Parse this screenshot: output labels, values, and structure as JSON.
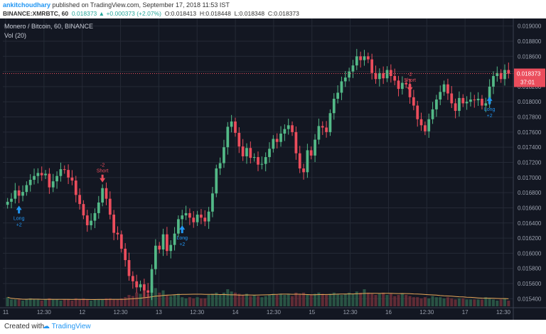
{
  "header": {
    "author": "ankitchoudhary",
    "published_text": "published on TradingView.com, September 17, 2018 11:53 IST",
    "symbol": "BINANCE:XMRBTC, 60",
    "last": "0.018373",
    "change": "+0.000373 (+2.07%)",
    "ohlc_open": "O:0.018413",
    "ohlc_high": "H:0.018448",
    "ohlc_low": "L:0.018348",
    "ohlc_close": "C:0.018373"
  },
  "legend": {
    "title": "Monero / Bitcoin, 60, BINANCE",
    "volume": "Vol (20)"
  },
  "price_tag": {
    "value": "0.018373",
    "countdown": "37:01"
  },
  "footer": {
    "created_with": "Created with",
    "brand": "TradingView"
  },
  "colors": {
    "up": "#53b987",
    "down": "#eb4d5c",
    "background": "#131722",
    "grid": "#252a36",
    "price_line": "#eb4d5c",
    "volume_ma": "#e8a85a",
    "signal": "#2196f3"
  },
  "chart_data": {
    "type": "candlestick",
    "ylim": [
      0.0153,
      0.0191
    ],
    "y_ticks": [
      "0.019000",
      "0.018800",
      "0.018600",
      "0.018400",
      "0.018200",
      "0.018000",
      "0.017800",
      "0.017600",
      "0.017400",
      "0.017200",
      "0.017000",
      "0.016800",
      "0.016600",
      "0.016400",
      "0.016200",
      "0.016000",
      "0.015800",
      "0.015600",
      "0.015400"
    ],
    "x_ticks": [
      "11",
      "12:30",
      "12",
      "12:30",
      "13",
      "12:30",
      "14",
      "12:30",
      "15",
      "12:30",
      "16",
      "12:30",
      "17",
      "12:30"
    ],
    "last_price": 0.018373,
    "close": [
      0.01668,
      0.01672,
      0.01683,
      0.01676,
      0.01681,
      0.0169,
      0.01697,
      0.01702,
      0.01706,
      0.01703,
      0.01705,
      0.01687,
      0.01695,
      0.01702,
      0.01711,
      0.0171,
      0.017,
      0.01696,
      0.01677,
      0.01665,
      0.0165,
      0.01637,
      0.01643,
      0.01653,
      0.01667,
      0.01686,
      0.01672,
      0.01651,
      0.01627,
      0.01625,
      0.01606,
      0.01591,
      0.0157,
      0.01563,
      0.01555,
      0.01559,
      0.01551,
      0.01548,
      0.01579,
      0.0161,
      0.01605,
      0.01625,
      0.01603,
      0.01611,
      0.01626,
      0.01645,
      0.0165,
      0.01653,
      0.01647,
      0.01641,
      0.01651,
      0.01647,
      0.01642,
      0.01655,
      0.01679,
      0.01712,
      0.01719,
      0.0174,
      0.01767,
      0.01774,
      0.01759,
      0.01741,
      0.01728,
      0.01739,
      0.01726,
      0.01727,
      0.01717,
      0.01718,
      0.01727,
      0.01738,
      0.01751,
      0.01747,
      0.01758,
      0.01764,
      0.01769,
      0.0176,
      0.01732,
      0.01712,
      0.01707,
      0.01736,
      0.01729,
      0.0175,
      0.01768,
      0.01766,
      0.0176,
      0.01785,
      0.01804,
      0.01812,
      0.01827,
      0.01832,
      0.0184,
      0.01848,
      0.0186,
      0.01855,
      0.0186,
      0.01856,
      0.01838,
      0.0183,
      0.01838,
      0.01831,
      0.01842,
      0.01834,
      0.01828,
      0.01817,
      0.01825,
      0.01823,
      0.01806,
      0.01795,
      0.01777,
      0.01769,
      0.01761,
      0.01777,
      0.0179,
      0.01803,
      0.01813,
      0.01823,
      0.01811,
      0.01798,
      0.01788,
      0.01805,
      0.01798,
      0.018,
      0.01803,
      0.01802,
      0.01804,
      0.01795,
      0.01798,
      0.0182,
      0.01834,
      0.01838,
      0.0183,
      0.01842,
      0.01837
    ],
    "volume": [
      0.4,
      0.3,
      0.3,
      0.3,
      0.25,
      0.3,
      0.35,
      0.3,
      0.3,
      0.25,
      0.3,
      0.35,
      0.3,
      0.3,
      0.25,
      0.3,
      0.3,
      0.25,
      0.35,
      0.3,
      0.35,
      0.3,
      0.25,
      0.3,
      0.3,
      0.3,
      0.35,
      0.35,
      0.3,
      0.3,
      0.35,
      0.4,
      0.5,
      0.45,
      0.6,
      0.55,
      0.7,
      0.55,
      0.9,
      0.8,
      0.6,
      0.7,
      0.5,
      0.45,
      0.5,
      0.55,
      0.4,
      0.35,
      0.4,
      0.35,
      0.4,
      0.35,
      0.35,
      0.5,
      0.55,
      0.6,
      0.5,
      0.6,
      0.75,
      0.65,
      0.6,
      0.55,
      0.5,
      0.55,
      0.45,
      0.5,
      0.45,
      0.4,
      0.45,
      0.5,
      0.55,
      0.5,
      0.55,
      0.5,
      0.55,
      0.45,
      0.6,
      0.55,
      0.6,
      0.5,
      0.5,
      0.55,
      0.6,
      0.55,
      0.5,
      0.55,
      0.6,
      0.55,
      0.5,
      0.55,
      0.6,
      0.55,
      0.65,
      0.6,
      0.75,
      0.6,
      0.55,
      0.5,
      0.55,
      0.6,
      0.5,
      0.55,
      0.45,
      0.5,
      0.55,
      0.5,
      0.45,
      0.4,
      0.4,
      0.35,
      0.4,
      0.35,
      0.45,
      0.4,
      0.4,
      0.35,
      0.4,
      0.35,
      0.3,
      0.35,
      0.35,
      0.3,
      0.3,
      0.3,
      0.3,
      0.3,
      0.4,
      0.35,
      0.3,
      0.25,
      0.3,
      0.35,
      0.25
    ],
    "signals": [
      {
        "index": 3,
        "type": "long",
        "label1": "Long",
        "label2": "+2"
      },
      {
        "index": 25,
        "type": "short",
        "label1": "Short",
        "label2": "-2"
      },
      {
        "index": 46,
        "type": "long",
        "label1": "Long",
        "label2": "+2"
      },
      {
        "index": 106,
        "type": "short",
        "label1": "Short",
        "label2": "-2"
      },
      {
        "index": 127,
        "type": "long",
        "label1": "Long",
        "label2": "+2"
      }
    ]
  }
}
